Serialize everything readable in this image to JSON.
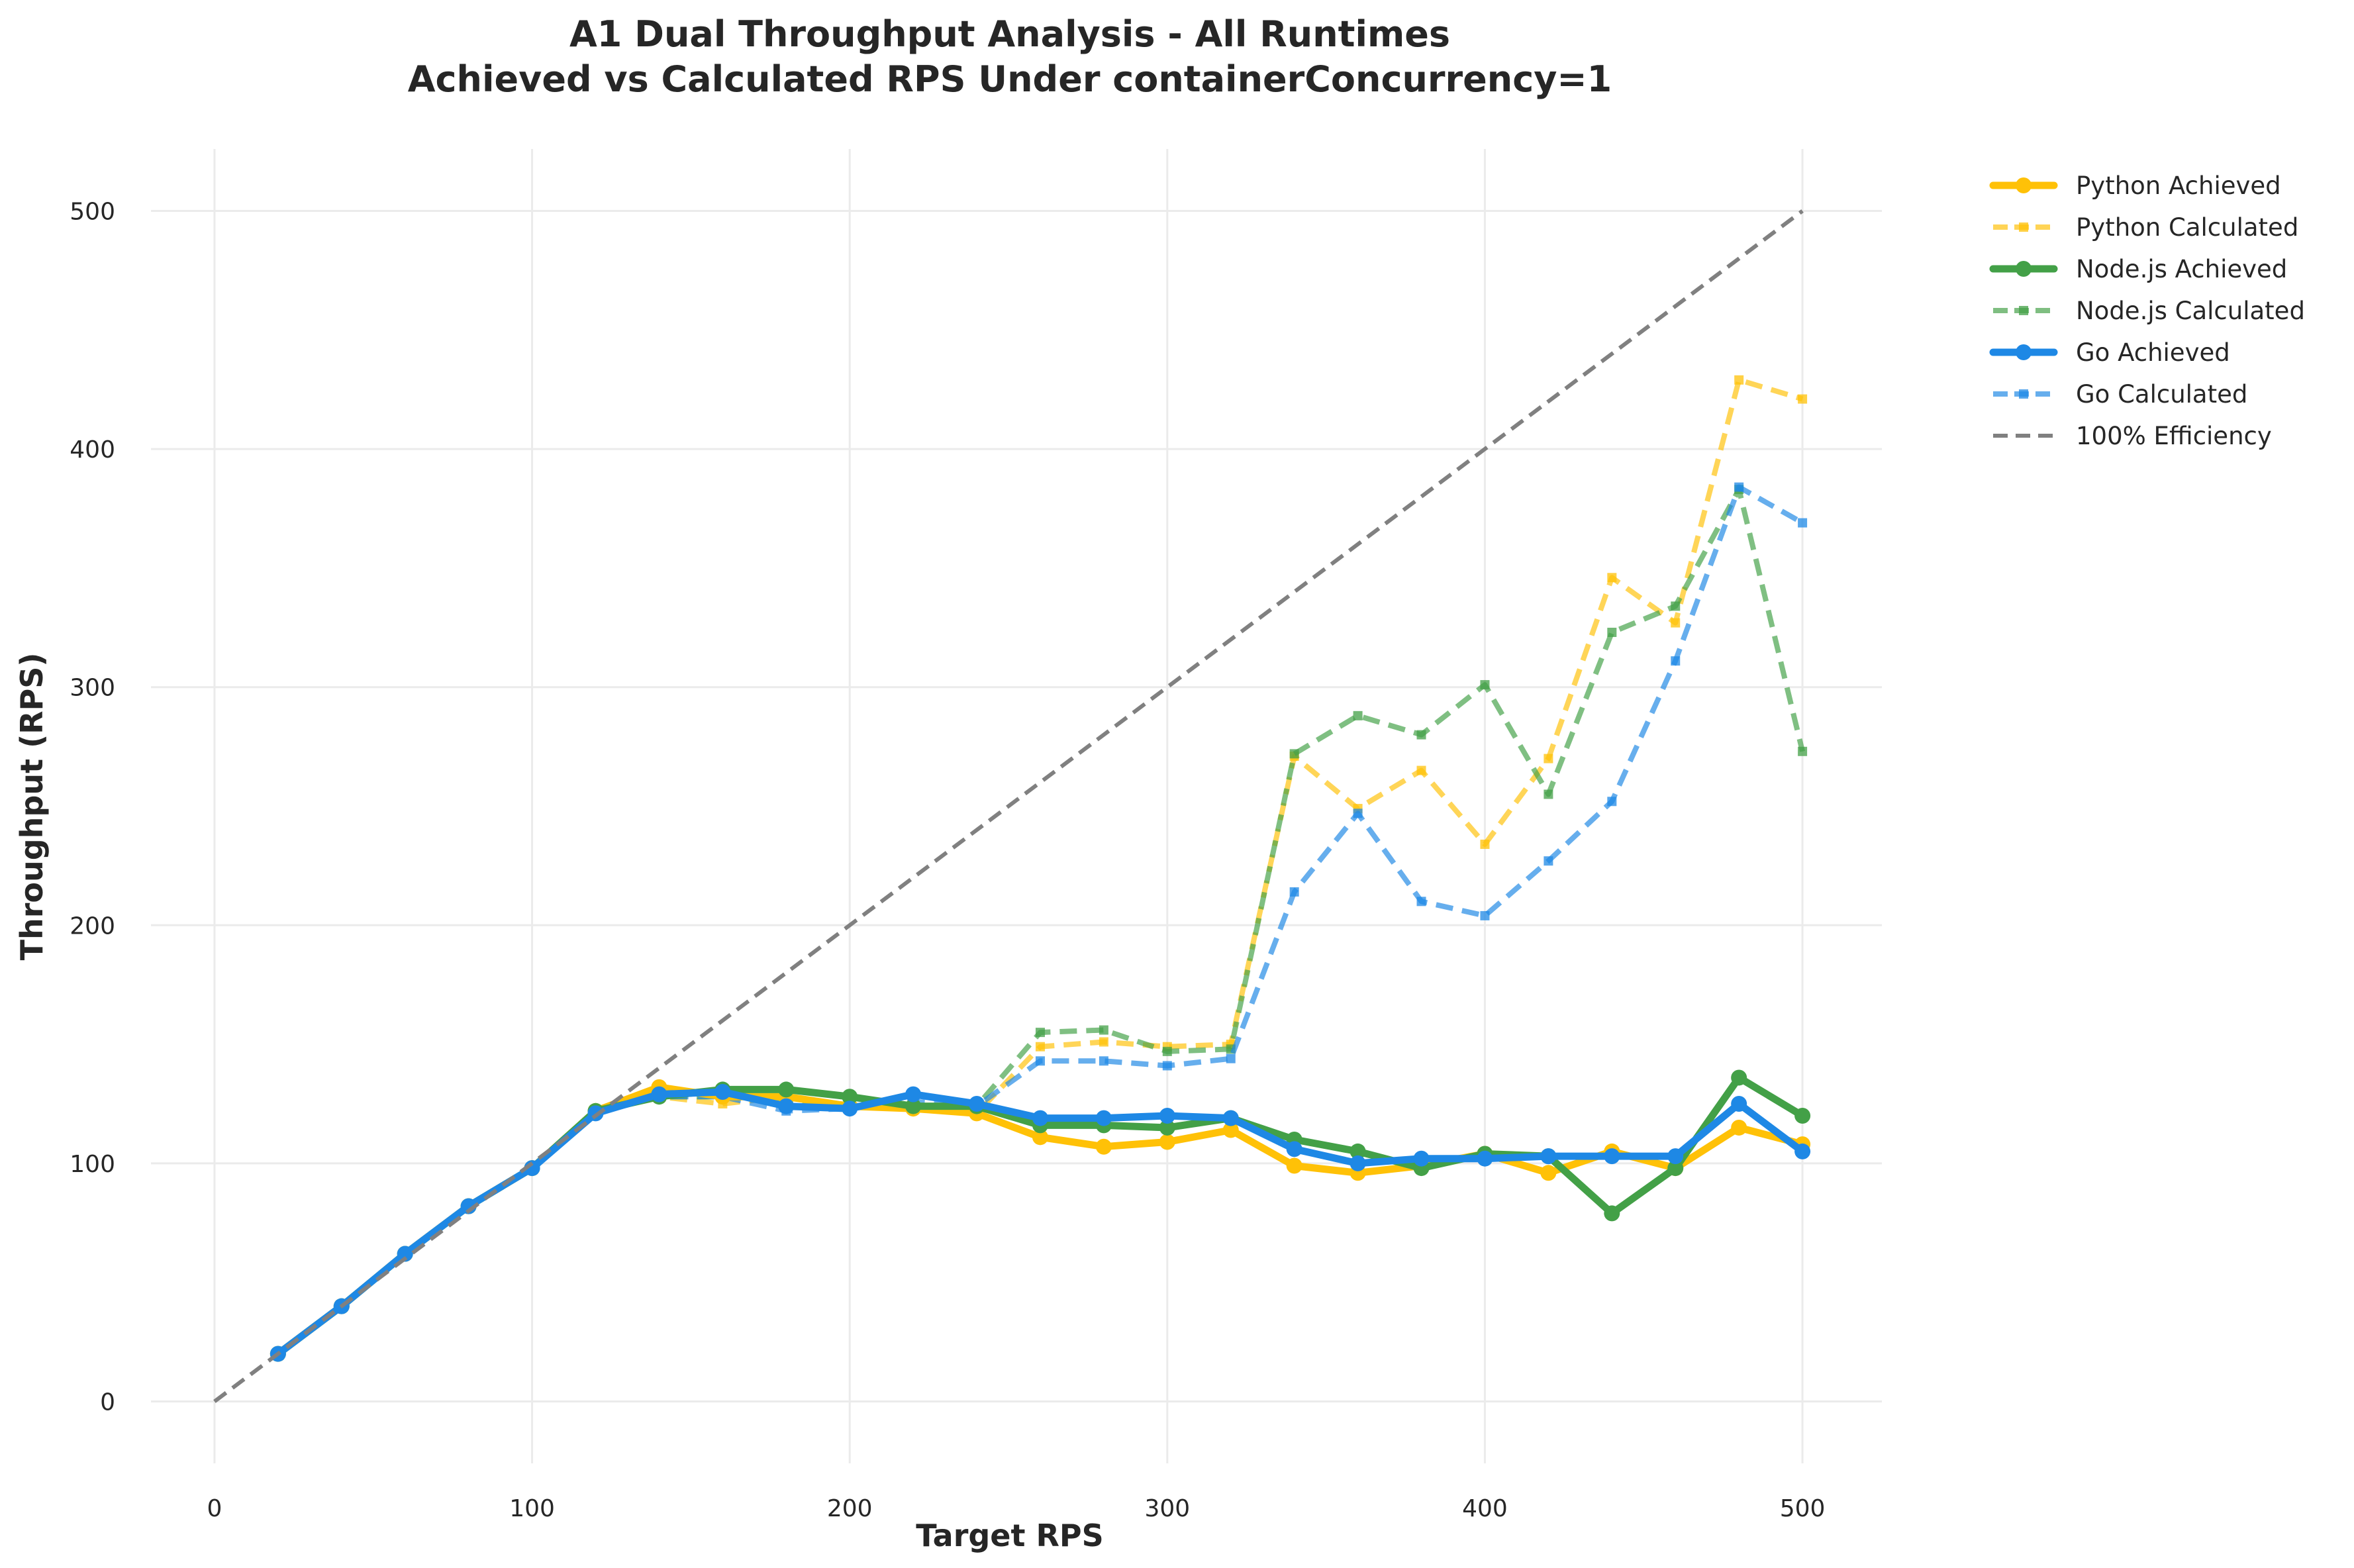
{
  "chart_data": {
    "type": "line",
    "title": "A1 Dual Throughput Analysis - All Runtimes",
    "subtitle": "Achieved vs Calculated RPS Under containerConcurrency=1",
    "xlabel": "Target RPS",
    "ylabel": "Throughput (RPS)",
    "xlim": [
      -20,
      525
    ],
    "ylim": [
      -26,
      526
    ],
    "xticks": [
      0,
      100,
      200,
      300,
      400,
      500
    ],
    "yticks": [
      0,
      100,
      200,
      300,
      400,
      500
    ],
    "grid": true,
    "legend_position": "outside-top-right",
    "x": [
      20,
      40,
      60,
      80,
      100,
      120,
      140,
      160,
      180,
      200,
      220,
      240,
      260,
      280,
      300,
      320,
      340,
      360,
      380,
      400,
      420,
      440,
      460,
      480,
      500
    ],
    "series": [
      {
        "name": "Python Achieved",
        "color": "#FFC107",
        "style": "solid",
        "marker": "circle",
        "values": [
          20,
          40,
          62,
          82,
          98,
          122,
          132,
          128,
          128,
          124,
          123,
          121,
          111,
          107,
          109,
          114,
          99,
          96,
          99,
          104,
          96,
          105,
          98,
          115,
          108
        ]
      },
      {
        "name": "Python Calculated",
        "color": "#FFC107",
        "style": "dashed",
        "marker": "square",
        "values": [
          20,
          40,
          62,
          82,
          98,
          122,
          128,
          125,
          128,
          124,
          123,
          121,
          149,
          151,
          149,
          150,
          271,
          249,
          265,
          234,
          270,
          346,
          327,
          429,
          421
        ]
      },
      {
        "name": "Node.js Achieved",
        "color": "#43A047",
        "style": "solid",
        "marker": "circle",
        "values": [
          20,
          40,
          62,
          82,
          98,
          122,
          128,
          131,
          131,
          128,
          124,
          124,
          116,
          116,
          115,
          119,
          110,
          105,
          98,
          104,
          103,
          79,
          98,
          136,
          120
        ]
      },
      {
        "name": "Node.js Calculated",
        "color": "#43A047",
        "style": "dashed",
        "marker": "square",
        "values": [
          20,
          40,
          62,
          82,
          98,
          122,
          128,
          128,
          126,
          124,
          124,
          124,
          155,
          156,
          147,
          148,
          272,
          288,
          280,
          301,
          255,
          323,
          334,
          383,
          273
        ]
      },
      {
        "name": "Go Achieved",
        "color": "#1E88E5",
        "style": "solid",
        "marker": "circle",
        "values": [
          20,
          40,
          62,
          82,
          98,
          121,
          129,
          130,
          124,
          123,
          129,
          125,
          119,
          119,
          120,
          119,
          106,
          100,
          102,
          102,
          103,
          103,
          103,
          125,
          105
        ]
      },
      {
        "name": "Go Calculated",
        "color": "#1E88E5",
        "style": "dashed",
        "marker": "square",
        "values": [
          20,
          40,
          62,
          82,
          98,
          121,
          128,
          128,
          122,
          123,
          126,
          124,
          143,
          143,
          141,
          144,
          214,
          247,
          210,
          204,
          227,
          252,
          311,
          384,
          369
        ]
      },
      {
        "name": "100% Efficiency",
        "color": "#808080",
        "style": "dashed-reference",
        "marker": "none",
        "x": [
          0,
          500
        ],
        "values": [
          0,
          500
        ]
      }
    ]
  }
}
